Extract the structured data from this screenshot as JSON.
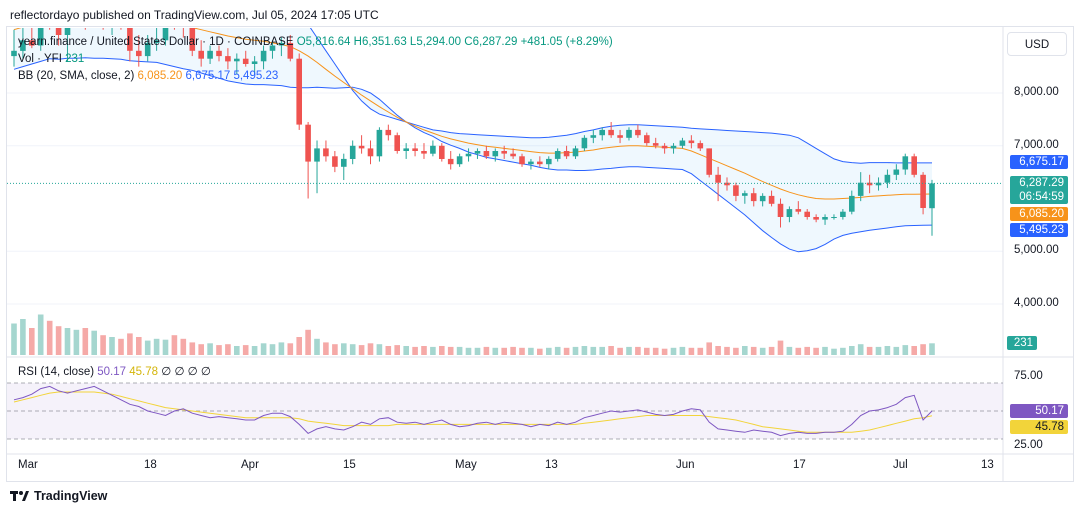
{
  "publisher_line": "reflectordayo published on TradingView.com, Jul 05, 2024 17:05 UTC",
  "currency_button": "USD",
  "legend": {
    "symbol": "yearn.finance / United States Dollar",
    "interval": "1D",
    "exchange": "COINBASE",
    "open": "O5,816.64",
    "high": "H6,351.63",
    "low": "L5,294.00",
    "close": "C6,287.29",
    "change": "+481.05 (+8.29%)",
    "vol_label": "Vol · YFI",
    "vol_value": "231",
    "bb_label": "BB (20, SMA, close, 2)",
    "bb_basis": "6,085.20",
    "bb_upper": "6,675.17",
    "bb_lower": "5,495.23",
    "rsi_label": "RSI (14, close)",
    "rsi_value": "50.17",
    "rsi_ma": "45.78",
    "rsi_extra": "∅ ∅ ∅ ∅"
  },
  "price_axis": [
    "8,000.00",
    "7,000.00",
    "5,000.00",
    "4,000.00"
  ],
  "price_tags": {
    "upper": "6,675.17",
    "close": "6,287.29",
    "countdown": "06:54:59",
    "basis": "6,085.20",
    "lower": "5,495.23",
    "volume": "231"
  },
  "rsi_axis": [
    "75.00",
    "25.00"
  ],
  "rsi_tags": {
    "rsi": "50.17",
    "ma": "45.78"
  },
  "time_axis": [
    "Mar",
    "18",
    "Apr",
    "15",
    "May",
    "13",
    "Jun",
    "17",
    "Jul",
    "13"
  ],
  "branding": "TradingView",
  "colors": {
    "up": "#26a69a",
    "down": "#ef5350",
    "bb_basis": "#f7931a",
    "bb_band": "#2962ff",
    "rsi": "#7e57c2",
    "rsi_ma": "#f2d43a"
  },
  "chart_data": {
    "type": "candlestick",
    "title": "yearn.finance / United States Dollar, 1D, COINBASE",
    "x_ticks": [
      "Mar",
      "18",
      "Apr",
      "15",
      "May",
      "13",
      "Jun",
      "17",
      "Jul",
      "13"
    ],
    "y_ticks": [
      4000,
      5000,
      7000,
      8000
    ],
    "ylim": [
      3300,
      9500
    ],
    "candles": [
      [
        8700,
        9200,
        8500,
        8800
      ],
      [
        8800,
        9300,
        8650,
        9000
      ],
      [
        9000,
        9400,
        8850,
        8900
      ],
      [
        8900,
        9600,
        8800,
        9500
      ],
      [
        9500,
        9700,
        9200,
        9300
      ],
      [
        9300,
        9500,
        8900,
        9100
      ],
      [
        9100,
        9600,
        8600,
        9400
      ],
      [
        9400,
        9800,
        9300,
        9600
      ],
      [
        9600,
        9700,
        9200,
        9450
      ],
      [
        9450,
        9900,
        9300,
        9700
      ],
      [
        9700,
        9800,
        9200,
        9300
      ],
      [
        9300,
        9700,
        9100,
        9550
      ],
      [
        9550,
        9700,
        9200,
        9350
      ],
      [
        9350,
        9900,
        8600,
        8800
      ],
      [
        8800,
        9100,
        8500,
        8700
      ],
      [
        8700,
        9100,
        8600,
        8950
      ],
      [
        8950,
        9250,
        8800,
        9000
      ],
      [
        9000,
        9700,
        8900,
        9500
      ],
      [
        9500,
        9600,
        9200,
        9350
      ],
      [
        9350,
        9600,
        9050,
        9250
      ],
      [
        9250,
        9300,
        8700,
        8800
      ],
      [
        8800,
        9000,
        8500,
        8650
      ],
      [
        8650,
        8900,
        8550,
        8800
      ],
      [
        8800,
        8900,
        8600,
        8700
      ],
      [
        8700,
        8850,
        8450,
        8600
      ],
      [
        8600,
        8750,
        8350,
        8650
      ],
      [
        8650,
        8800,
        8500,
        8550
      ],
      [
        8550,
        8700,
        8350,
        8600
      ],
      [
        8600,
        8900,
        8450,
        8800
      ],
      [
        8800,
        9000,
        8650,
        8900
      ],
      [
        8900,
        9050,
        8700,
        8950
      ],
      [
        8950,
        9100,
        8600,
        8650
      ],
      [
        8650,
        8750,
        7300,
        7400
      ],
      [
        7400,
        7450,
        6000,
        6700
      ],
      [
        6700,
        7100,
        6100,
        6950
      ],
      [
        6950,
        7100,
        6700,
        6800
      ],
      [
        6800,
        6900,
        6500,
        6600
      ],
      [
        6600,
        6850,
        6350,
        6750
      ],
      [
        6750,
        7100,
        6650,
        7000
      ],
      [
        7000,
        7200,
        6850,
        6950
      ],
      [
        6950,
        7100,
        6650,
        6800
      ],
      [
        6800,
        7350,
        6700,
        7300
      ],
      [
        7300,
        7400,
        7100,
        7200
      ],
      [
        7200,
        7250,
        6850,
        6900
      ],
      [
        6900,
        7050,
        6750,
        6950
      ],
      [
        6950,
        7050,
        6800,
        6900
      ],
      [
        6900,
        7050,
        6750,
        6850
      ],
      [
        6850,
        7100,
        6800,
        7000
      ],
      [
        7000,
        7050,
        6700,
        6750
      ],
      [
        6750,
        6900,
        6550,
        6650
      ],
      [
        6650,
        6850,
        6600,
        6800
      ],
      [
        6800,
        6950,
        6700,
        6850
      ],
      [
        6850,
        6950,
        6750,
        6900
      ],
      [
        6900,
        7000,
        6750,
        6800
      ],
      [
        6800,
        6950,
        6700,
        6900
      ],
      [
        6900,
        7000,
        6750,
        6850
      ],
      [
        6850,
        6950,
        6750,
        6800
      ],
      [
        6800,
        6850,
        6600,
        6650
      ],
      [
        6650,
        6750,
        6550,
        6700
      ],
      [
        6700,
        6800,
        6600,
        6650
      ],
      [
        6650,
        6800,
        6550,
        6750
      ],
      [
        6750,
        6950,
        6700,
        6900
      ],
      [
        6900,
        7000,
        6750,
        6800
      ],
      [
        6800,
        7000,
        6750,
        6950
      ],
      [
        6950,
        7200,
        6900,
        7150
      ],
      [
        7150,
        7300,
        7050,
        7200
      ],
      [
        7200,
        7350,
        7100,
        7300
      ],
      [
        7300,
        7450,
        7150,
        7200
      ],
      [
        7200,
        7300,
        7050,
        7150
      ],
      [
        7150,
        7350,
        7100,
        7300
      ],
      [
        7300,
        7400,
        7150,
        7200
      ],
      [
        7200,
        7250,
        7000,
        7050
      ],
      [
        7050,
        7150,
        6950,
        7000
      ],
      [
        7000,
        7050,
        6850,
        6950
      ],
      [
        6950,
        7050,
        6850,
        7000
      ],
      [
        7000,
        7150,
        6950,
        7100
      ],
      [
        7100,
        7200,
        6950,
        7050
      ],
      [
        7050,
        7100,
        6900,
        6950
      ],
      [
        6950,
        6950,
        6400,
        6450
      ],
      [
        6450,
        6600,
        5950,
        6300
      ],
      [
        6300,
        6400,
        6150,
        6250
      ],
      [
        6250,
        6300,
        5950,
        6050
      ],
      [
        6050,
        6150,
        5900,
        6100
      ],
      [
        6100,
        6200,
        5850,
        5950
      ],
      [
        5950,
        6100,
        5850,
        6050
      ],
      [
        6050,
        6150,
        5850,
        5900
      ],
      [
        5900,
        6000,
        5450,
        5650
      ],
      [
        5650,
        5850,
        5550,
        5800
      ],
      [
        5800,
        5950,
        5700,
        5750
      ],
      [
        5750,
        5800,
        5600,
        5650
      ],
      [
        5650,
        5700,
        5550,
        5600
      ],
      [
        5600,
        5700,
        5500,
        5650
      ],
      [
        5650,
        5700,
        5600,
        5650
      ],
      [
        5650,
        5800,
        5600,
        5750
      ],
      [
        5750,
        6150,
        5700,
        6050
      ],
      [
        6050,
        6500,
        5950,
        6300
      ],
      [
        6300,
        6450,
        6100,
        6250
      ],
      [
        6250,
        6400,
        6150,
        6300
      ],
      [
        6300,
        6550,
        6200,
        6450
      ],
      [
        6450,
        6650,
        6350,
        6550
      ],
      [
        6550,
        6850,
        6450,
        6800
      ],
      [
        6800,
        6850,
        6400,
        6450
      ],
      [
        6450,
        6500,
        5700,
        5820
      ],
      [
        5817,
        6352,
        5294,
        6287
      ]
    ],
    "bb_upper": [
      9950,
      10000,
      10050,
      10100,
      10150,
      10200,
      10220,
      10240,
      10250,
      10260,
      10260,
      10250,
      10240,
      10230,
      10200,
      10170,
      10140,
      10120,
      10100,
      10080,
      10050,
      10020,
      9990,
      9960,
      9930,
      9900,
      9870,
      9840,
      9800,
      9750,
      9700,
      9650,
      9500,
      9300,
      9050,
      8800,
      8550,
      8300,
      8050,
      7850,
      7700,
      7600,
      7550,
      7500,
      7450,
      7400,
      7350,
      7300,
      7280,
      7250,
      7230,
      7220,
      7210,
      7200,
      7190,
      7180,
      7170,
      7160,
      7150,
      7150,
      7160,
      7180,
      7200,
      7230,
      7270,
      7300,
      7340,
      7370,
      7390,
      7400,
      7400,
      7390,
      7380,
      7370,
      7360,
      7350,
      7330,
      7320,
      7310,
      7300,
      7290,
      7280,
      7270,
      7260,
      7250,
      7240,
      7220,
      7200,
      7150,
      7050,
      6950,
      6850,
      6750,
      6700,
      6680,
      6670,
      6680,
      6680,
      6680,
      6675,
      6675,
      6675,
      6675,
      6675
    ],
    "bb_basis": [
      9200,
      9250,
      9300,
      9350,
      9400,
      9420,
      9440,
      9450,
      9460,
      9460,
      9460,
      9450,
      9440,
      9420,
      9400,
      9380,
      9360,
      9330,
      9300,
      9270,
      9240,
      9200,
      9160,
      9120,
      9080,
      9050,
      9020,
      9000,
      8980,
      8950,
      8920,
      8880,
      8800,
      8700,
      8580,
      8450,
      8320,
      8200,
      8080,
      7960,
      7850,
      7740,
      7640,
      7540,
      7450,
      7370,
      7300,
      7240,
      7180,
      7130,
      7090,
      7050,
      7020,
      6990,
      6970,
      6950,
      6930,
      6910,
      6890,
      6870,
      6860,
      6860,
      6870,
      6880,
      6900,
      6920,
      6950,
      6970,
      6990,
      7000,
      7000,
      6990,
      6980,
      6970,
      6960,
      6950,
      6900,
      6830,
      6760,
      6690,
      6620,
      6550,
      6480,
      6400,
      6320,
      6250,
      6180,
      6120,
      6070,
      6030,
      6000,
      5990,
      5990,
      6000,
      6010,
      6020,
      6040,
      6050,
      6060,
      6070,
      6080,
      6082,
      6084,
      6085
    ],
    "bb_lower": [
      8450,
      8500,
      8550,
      8600,
      8650,
      8640,
      8660,
      8660,
      8670,
      8660,
      8660,
      8650,
      8640,
      8610,
      8600,
      8590,
      8580,
      8540,
      8500,
      8460,
      8430,
      8380,
      8330,
      8280,
      8230,
      8200,
      8170,
      8160,
      8160,
      8150,
      8140,
      8110,
      8100,
      8100,
      8110,
      8100,
      8090,
      8100,
      8110,
      8070,
      8000,
      7880,
      7730,
      7580,
      7450,
      7340,
      7250,
      7180,
      7080,
      7010,
      6950,
      6880,
      6830,
      6780,
      6750,
      6720,
      6690,
      6660,
      6630,
      6590,
      6560,
      6540,
      6540,
      6530,
      6530,
      6540,
      6560,
      6570,
      6590,
      6600,
      6600,
      6590,
      6580,
      6570,
      6560,
      6550,
      6470,
      6340,
      6210,
      6080,
      5950,
      5820,
      5690,
      5540,
      5390,
      5260,
      5140,
      5040,
      4990,
      5010,
      5050,
      5130,
      5230,
      5300,
      5340,
      5370,
      5400,
      5420,
      5440,
      5465,
      5485,
      5489,
      5493,
      5495
    ],
    "volume": [
      35,
      40,
      30,
      45,
      38,
      32,
      30,
      28,
      30,
      27,
      22,
      20,
      18,
      24,
      20,
      16,
      18,
      17,
      22,
      18,
      14,
      12,
      13,
      11,
      12,
      10,
      11,
      10,
      13,
      12,
      14,
      13,
      20,
      28,
      18,
      14,
      12,
      13,
      12,
      11,
      13,
      12,
      10,
      11,
      10,
      9,
      10,
      9,
      10,
      9,
      9,
      8,
      8,
      9,
      8,
      8,
      9,
      8,
      8,
      7,
      8,
      9,
      8,
      9,
      10,
      9,
      9,
      10,
      8,
      9,
      9,
      8,
      8,
      7,
      8,
      9,
      8,
      8,
      14,
      10,
      9,
      8,
      10,
      9,
      8,
      9,
      16,
      9,
      8,
      9,
      8,
      9,
      7,
      8,
      10,
      12,
      9,
      9,
      10,
      9,
      11,
      10,
      12,
      13
    ],
    "rsi": [
      60,
      62,
      65,
      70,
      72,
      68,
      66,
      68,
      70,
      72,
      68,
      64,
      60,
      56,
      54,
      50,
      48,
      46,
      50,
      52,
      48,
      46,
      44,
      45,
      44,
      43,
      42,
      42,
      46,
      48,
      48,
      45,
      38,
      30,
      34,
      36,
      34,
      33,
      36,
      40,
      38,
      43,
      44,
      40,
      39,
      40,
      38,
      40,
      42,
      38,
      36,
      37,
      39,
      40,
      38,
      40,
      39,
      38,
      36,
      38,
      37,
      40,
      38,
      40,
      44,
      46,
      48,
      50,
      49,
      50,
      51,
      49,
      47,
      46,
      47,
      50,
      52,
      51,
      40,
      34,
      33,
      32,
      31,
      33,
      32,
      31,
      28,
      30,
      31,
      30,
      30,
      31,
      31,
      32,
      38,
      46,
      50,
      51,
      53,
      56,
      62,
      64,
      42,
      50
    ],
    "rsi_ma": [
      58,
      60,
      62,
      64,
      66,
      67,
      67,
      67,
      67,
      67,
      66,
      65,
      63,
      61,
      59,
      57,
      55,
      53,
      52,
      51,
      50,
      49,
      48,
      47,
      46,
      45,
      44,
      44,
      44,
      44,
      44,
      44,
      43,
      41,
      40,
      39,
      38,
      37,
      37,
      37,
      37,
      37,
      37,
      38,
      38,
      38,
      38,
      38,
      38,
      38,
      38,
      38,
      38,
      38,
      38,
      38,
      38,
      38,
      38,
      38,
      38,
      38,
      38,
      38,
      39,
      40,
      41,
      42,
      43,
      44,
      45,
      46,
      46,
      46,
      46,
      46,
      46,
      46,
      45,
      44,
      43,
      42,
      40,
      38,
      36,
      35,
      34,
      33,
      32,
      31,
      31,
      31,
      31,
      31,
      31,
      32,
      33,
      35,
      37,
      39,
      41,
      43,
      44,
      45.78
    ]
  }
}
